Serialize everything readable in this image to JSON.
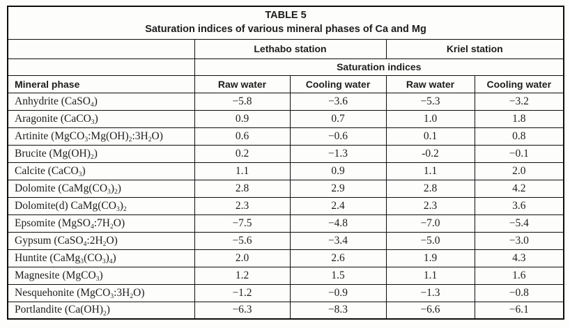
{
  "table": {
    "title": "TABLE 5",
    "subtitle": "Saturation indices of various mineral phases of Ca and Mg",
    "station_headers": [
      "Lethabo station",
      "Kriel station"
    ],
    "span_header": "Saturation indices",
    "col_headers": [
      "Mineral phase",
      "Raw water",
      "Cooling water",
      "Raw water",
      "Cooling water"
    ],
    "rows": [
      {
        "phase": "Anhydrite (CaSO~4~)",
        "values": [
          "−5.8",
          "−3.6",
          "−5.3",
          "−3.2"
        ]
      },
      {
        "phase": "Aragonite (CaCO~3~)",
        "values": [
          "0.9",
          "0.7",
          "1.0",
          "1.8"
        ]
      },
      {
        "phase": "Artinite (MgCO~3~:Mg(OH)~2~:3H~2~O)",
        "values": [
          "0.6",
          "−0.6",
          "0.1",
          "0.8"
        ]
      },
      {
        "phase": "Brucite (Mg(OH)~2~)",
        "values": [
          "0.2",
          "−1.3",
          "-0.2",
          "−0.1"
        ]
      },
      {
        "phase": "Calcite (CaCO~3~)",
        "values": [
          "1.1",
          "0.9",
          "1.1",
          "2.0"
        ]
      },
      {
        "phase": "Dolomite (CaMg(CO~3~)~2~)",
        "values": [
          "2.8",
          "2.9",
          "2.8",
          "4.2"
        ]
      },
      {
        "phase": "Dolomite(d) CaMg(CO~3~)~2~",
        "values": [
          "2.3",
          "2.4",
          "2.3",
          "3.6"
        ]
      },
      {
        "phase": "Epsomite (MgSO~4~:7H~2~O)",
        "values": [
          "−7.5",
          "−4.8",
          "−7.0",
          "−5.4"
        ]
      },
      {
        "phase": "Gypsum (CaSO~4~:2H~2~O)",
        "values": [
          "−5.6",
          "−3.4",
          "−5.0",
          "−3.0"
        ]
      },
      {
        "phase": "Huntite (CaMg~3~(CO~3~)~4~)",
        "values": [
          "2.0",
          "2.6",
          "1.9",
          "4.3"
        ]
      },
      {
        "phase": "Magnesite (MgCO~3~)",
        "values": [
          "1.2",
          "1.5",
          "1.1",
          "1.6"
        ]
      },
      {
        "phase": "Nesquehonite (MgCO~3~:3H~2~O)",
        "values": [
          "−1.2",
          "−0.9",
          "−1.3",
          "−0.8"
        ]
      },
      {
        "phase": "Portlandite (Ca(OH)~2~)",
        "values": [
          "−6.3",
          "−8.3",
          "−6.6",
          "−6.1"
        ]
      }
    ]
  },
  "colors": {
    "border": "#0c0c0c",
    "text": "#1d1d1d",
    "background": "#fdfdfc"
  }
}
